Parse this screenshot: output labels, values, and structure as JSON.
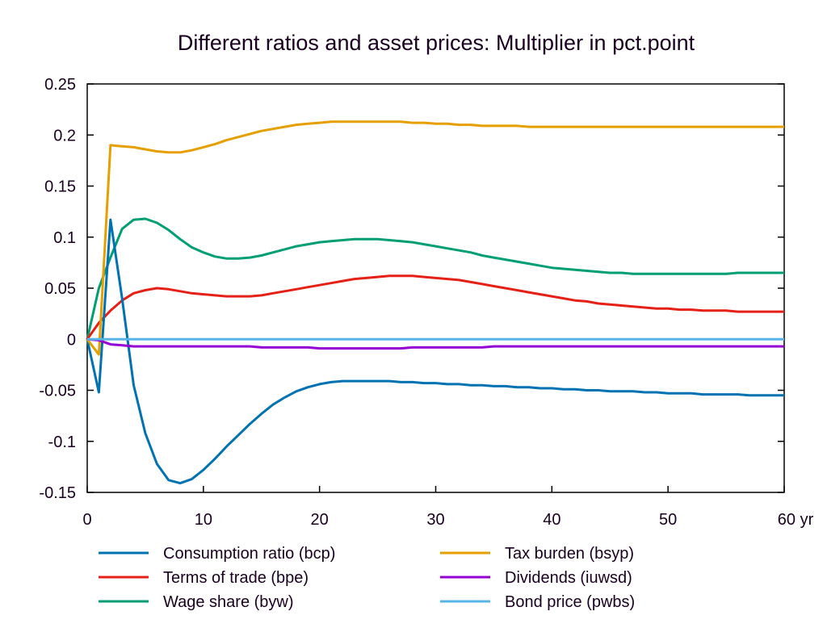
{
  "chart_data": {
    "type": "line",
    "title": "Different ratios and asset prices: Multiplier in pct.point",
    "xlabel": "",
    "ylabel": "",
    "x_unit_label": "yr",
    "xlim": [
      0,
      60
    ],
    "ylim": [
      -0.15,
      0.25
    ],
    "x_ticks": [
      0,
      10,
      20,
      30,
      40,
      50,
      60
    ],
    "x_tick_labels": [
      "0",
      "10",
      "20",
      "30",
      "40",
      "50",
      "60 yr"
    ],
    "y_ticks": [
      -0.15,
      -0.1,
      -0.05,
      0,
      0.05,
      0.1,
      0.15,
      0.2,
      0.25
    ],
    "y_tick_labels": [
      "-0.15",
      "-0.1",
      "-0.05",
      "0",
      "0.05",
      "0.1",
      "0.15",
      "0.2",
      "0.25"
    ],
    "grid": false,
    "legend_position": "bottom",
    "x": [
      0,
      1,
      2,
      3,
      4,
      5,
      6,
      7,
      8,
      9,
      10,
      11,
      12,
      13,
      14,
      15,
      16,
      17,
      18,
      19,
      20,
      21,
      22,
      23,
      24,
      25,
      26,
      27,
      28,
      29,
      30,
      31,
      32,
      33,
      34,
      35,
      36,
      37,
      38,
      39,
      40,
      41,
      42,
      43,
      44,
      45,
      46,
      47,
      48,
      49,
      50,
      51,
      52,
      53,
      54,
      55,
      56,
      57,
      58,
      59,
      60
    ],
    "series": [
      {
        "name": "Consumption ratio (bcp)",
        "color": "#0072b2",
        "values": [
          0,
          -0.052,
          0.117,
          0.04,
          -0.045,
          -0.092,
          -0.122,
          -0.138,
          -0.141,
          -0.137,
          -0.128,
          -0.117,
          -0.105,
          -0.094,
          -0.083,
          -0.073,
          -0.064,
          -0.057,
          -0.051,
          -0.047,
          -0.044,
          -0.042,
          -0.041,
          -0.041,
          -0.041,
          -0.041,
          -0.041,
          -0.042,
          -0.042,
          -0.043,
          -0.043,
          -0.044,
          -0.044,
          -0.045,
          -0.045,
          -0.046,
          -0.046,
          -0.047,
          -0.047,
          -0.048,
          -0.048,
          -0.049,
          -0.049,
          -0.05,
          -0.05,
          -0.051,
          -0.051,
          -0.051,
          -0.052,
          -0.052,
          -0.053,
          -0.053,
          -0.053,
          -0.054,
          -0.054,
          -0.054,
          -0.054,
          -0.055,
          -0.055,
          -0.055,
          -0.055
        ]
      },
      {
        "name": "Terms of trade (bpe)",
        "color": "#e52017",
        "values": [
          0,
          0.016,
          0.028,
          0.038,
          0.045,
          0.048,
          0.05,
          0.049,
          0.047,
          0.045,
          0.044,
          0.043,
          0.042,
          0.042,
          0.042,
          0.043,
          0.045,
          0.047,
          0.049,
          0.051,
          0.053,
          0.055,
          0.057,
          0.059,
          0.06,
          0.061,
          0.062,
          0.062,
          0.062,
          0.061,
          0.06,
          0.059,
          0.058,
          0.056,
          0.054,
          0.052,
          0.05,
          0.048,
          0.046,
          0.044,
          0.042,
          0.04,
          0.038,
          0.037,
          0.035,
          0.034,
          0.033,
          0.032,
          0.031,
          0.03,
          0.03,
          0.029,
          0.029,
          0.028,
          0.028,
          0.028,
          0.027,
          0.027,
          0.027,
          0.027,
          0.027
        ]
      },
      {
        "name": "Wage share (byw)",
        "color": "#009e73",
        "values": [
          0,
          0.05,
          0.08,
          0.108,
          0.117,
          0.118,
          0.114,
          0.107,
          0.098,
          0.09,
          0.085,
          0.081,
          0.079,
          0.079,
          0.08,
          0.082,
          0.085,
          0.088,
          0.091,
          0.093,
          0.095,
          0.096,
          0.097,
          0.098,
          0.098,
          0.098,
          0.097,
          0.096,
          0.095,
          0.093,
          0.091,
          0.089,
          0.087,
          0.085,
          0.082,
          0.08,
          0.078,
          0.076,
          0.074,
          0.072,
          0.07,
          0.069,
          0.068,
          0.067,
          0.066,
          0.065,
          0.065,
          0.064,
          0.064,
          0.064,
          0.064,
          0.064,
          0.064,
          0.064,
          0.064,
          0.064,
          0.065,
          0.065,
          0.065,
          0.065,
          0.065
        ]
      },
      {
        "name": "Tax burden (bsyp)",
        "color": "#e69f00",
        "values": [
          0,
          -0.015,
          0.19,
          0.189,
          0.188,
          0.186,
          0.184,
          0.183,
          0.183,
          0.185,
          0.188,
          0.191,
          0.195,
          0.198,
          0.201,
          0.204,
          0.206,
          0.208,
          0.21,
          0.211,
          0.212,
          0.213,
          0.213,
          0.213,
          0.213,
          0.213,
          0.213,
          0.213,
          0.212,
          0.212,
          0.211,
          0.211,
          0.21,
          0.21,
          0.209,
          0.209,
          0.209,
          0.209,
          0.208,
          0.208,
          0.208,
          0.208,
          0.208,
          0.208,
          0.208,
          0.208,
          0.208,
          0.208,
          0.208,
          0.208,
          0.208,
          0.208,
          0.208,
          0.208,
          0.208,
          0.208,
          0.208,
          0.208,
          0.208,
          0.208,
          0.208
        ]
      },
      {
        "name": "Dividends (iuwsd)",
        "color": "#9400d3",
        "values": [
          0,
          -0.001,
          -0.005,
          -0.006,
          -0.007,
          -0.007,
          -0.007,
          -0.007,
          -0.007,
          -0.007,
          -0.007,
          -0.007,
          -0.007,
          -0.007,
          -0.007,
          -0.008,
          -0.008,
          -0.008,
          -0.008,
          -0.008,
          -0.009,
          -0.009,
          -0.009,
          -0.009,
          -0.009,
          -0.009,
          -0.009,
          -0.009,
          -0.008,
          -0.008,
          -0.008,
          -0.008,
          -0.008,
          -0.008,
          -0.008,
          -0.007,
          -0.007,
          -0.007,
          -0.007,
          -0.007,
          -0.007,
          -0.007,
          -0.007,
          -0.007,
          -0.007,
          -0.007,
          -0.007,
          -0.007,
          -0.007,
          -0.007,
          -0.007,
          -0.007,
          -0.007,
          -0.007,
          -0.007,
          -0.007,
          -0.007,
          -0.007,
          -0.007,
          -0.007,
          -0.007
        ]
      },
      {
        "name": "Bond price (pwbs)",
        "color": "#56b4e9",
        "values": [
          0,
          0,
          0,
          0,
          0,
          0,
          0,
          0,
          0,
          0,
          0,
          0,
          0,
          0,
          0,
          0,
          0,
          0,
          0,
          0,
          0,
          0,
          0,
          0,
          0,
          0,
          0,
          0,
          0,
          0,
          0,
          0,
          0,
          0,
          0,
          0,
          0,
          0,
          0,
          0,
          0,
          0,
          0,
          0,
          0,
          0,
          0,
          0,
          0,
          0,
          0,
          0,
          0,
          0,
          0,
          0,
          0,
          0,
          0,
          0,
          0
        ]
      }
    ]
  }
}
